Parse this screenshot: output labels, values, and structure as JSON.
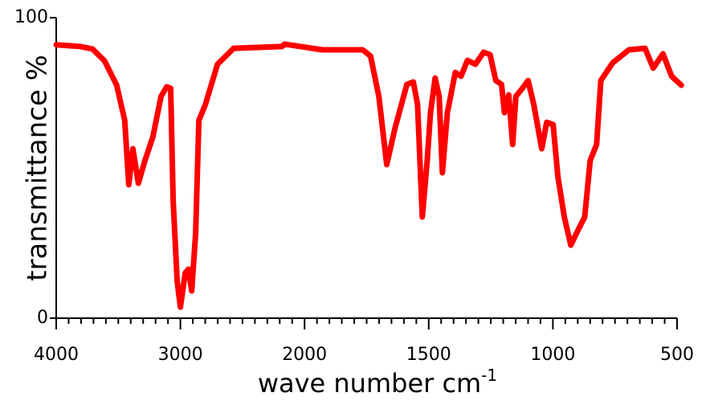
{
  "chart_data": {
    "type": "line",
    "ylabel": "transmittance %",
    "xlabel": {
      "text": "wave number cm",
      "sup": "-1"
    },
    "xlim": [
      4000,
      500
    ],
    "ylim": [
      0,
      100
    ],
    "xticks": [
      4000,
      3000,
      2000,
      1500,
      1000,
      500
    ],
    "xminorticks": [
      3900,
      3800,
      3700,
      3600,
      3500,
      3400,
      3300,
      3200,
      3100,
      2900,
      2800,
      2700,
      2600,
      2500,
      2400,
      2300,
      2200,
      2100,
      1950,
      1900,
      1850,
      1800,
      1750,
      1700,
      1650,
      1600,
      1550,
      1450,
      1400,
      1350,
      1300,
      1250,
      1200,
      1150,
      1100,
      1050,
      950,
      900,
      850,
      800,
      750,
      700,
      650,
      600,
      550
    ],
    "yticks": [
      0,
      100
    ],
    "series": [
      {
        "color": "#ff0000",
        "x": [
          4000,
          3805,
          3708,
          3610,
          3513,
          3448,
          3416,
          3383,
          3338,
          3286,
          3221,
          3156,
          3110,
          3078,
          3058,
          3026,
          3000,
          2961,
          2935,
          2909,
          2877,
          2851,
          2799,
          2701,
          2571,
          2182,
          2162,
          1929,
          1766,
          1734,
          1701,
          1669,
          1636,
          1588,
          1562,
          1545,
          1526,
          1506,
          1493,
          1474,
          1458,
          1445,
          1425,
          1393,
          1370,
          1344,
          1312,
          1279,
          1253,
          1230,
          1207,
          1195,
          1178,
          1162,
          1149,
          1123,
          1100,
          1077,
          1045,
          1025,
          999,
          980,
          954,
          928,
          905,
          872,
          850,
          824,
          807,
          759,
          694,
          629,
          596,
          557,
          522,
          483
        ],
        "values": [
          91,
          90.4,
          89.6,
          85.6,
          77.5,
          65.8,
          44.4,
          56.4,
          44.9,
          52.4,
          60.4,
          73.8,
          77,
          76.5,
          39,
          12.3,
          3.7,
          15,
          16.3,
          9.1,
          28.3,
          65.8,
          71.1,
          84.5,
          89.8,
          90.4,
          91.2,
          89.3,
          89.3,
          87.2,
          73.8,
          51.1,
          63.1,
          77.8,
          78.6,
          71.1,
          33.7,
          52.4,
          68.4,
          79.9,
          73.8,
          48.4,
          68.4,
          81.8,
          80.5,
          85.8,
          84.5,
          88.5,
          87.7,
          79.1,
          77.8,
          68.4,
          74.3,
          57.8,
          73.8,
          76.5,
          79.1,
          71.1,
          56.4,
          65.2,
          64.4,
          47.1,
          33.7,
          24.3,
          28.3,
          33.7,
          52.4,
          57.8,
          79.1,
          85,
          89.3,
          89.8,
          83.2,
          88,
          80.5,
          77.5
        ]
      }
    ]
  }
}
